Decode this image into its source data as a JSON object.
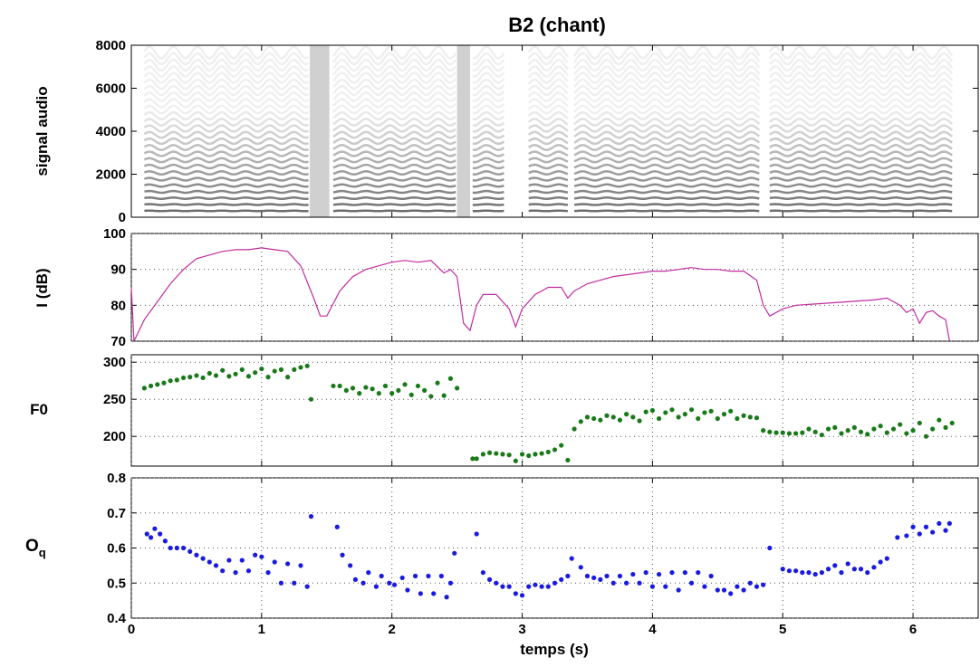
{
  "chart_data": [
    {
      "type": "spectrogram",
      "title": "B2   (chant)",
      "ylabel": "signal audio",
      "xlim": [
        0,
        6.5
      ],
      "xticks": [
        0,
        1,
        2,
        3,
        4,
        5,
        6
      ],
      "ylim": [
        0,
        8000
      ],
      "yticks": [
        0,
        2000,
        4000,
        6000,
        8000
      ],
      "grid": false
    },
    {
      "type": "line",
      "ylabel": "I (dB)",
      "color": "#c02ca0",
      "grid": true,
      "xlim": [
        0,
        6.5
      ],
      "xticks": [
        0,
        1,
        2,
        3,
        4,
        5,
        6
      ],
      "ylim": [
        70,
        100
      ],
      "yticks": [
        70,
        80,
        90,
        100
      ],
      "x": [
        0,
        0.02,
        0.1,
        0.2,
        0.3,
        0.4,
        0.5,
        0.6,
        0.7,
        0.8,
        0.9,
        1.0,
        1.1,
        1.2,
        1.3,
        1.4,
        1.45,
        1.5,
        1.6,
        1.7,
        1.8,
        1.9,
        2.0,
        2.1,
        2.2,
        2.3,
        2.4,
        2.45,
        2.5,
        2.55,
        2.6,
        2.65,
        2.7,
        2.8,
        2.9,
        2.95,
        3.0,
        3.1,
        3.2,
        3.3,
        3.35,
        3.4,
        3.5,
        3.6,
        3.7,
        3.8,
        3.9,
        4.0,
        4.1,
        4.2,
        4.3,
        4.4,
        4.5,
        4.6,
        4.7,
        4.8,
        4.85,
        4.9,
        5.0,
        5.1,
        5.3,
        5.5,
        5.7,
        5.8,
        5.9,
        5.95,
        6.0,
        6.05,
        6.1,
        6.15,
        6.2,
        6.25,
        6.28
      ],
      "values": [
        85,
        70,
        76,
        81,
        86,
        90,
        93,
        94,
        95,
        95.5,
        95.5,
        96,
        95.5,
        95,
        91,
        82,
        77,
        77,
        84,
        88,
        90,
        91,
        92,
        92.5,
        92,
        92.5,
        89,
        90,
        88,
        75,
        73,
        80,
        83,
        83,
        79,
        74,
        79,
        83,
        85,
        85,
        82,
        84,
        86,
        87,
        88,
        88.5,
        89,
        89.5,
        89.5,
        90,
        90.5,
        90,
        90,
        89.5,
        89.5,
        87,
        80,
        77,
        79,
        80,
        80.5,
        81,
        81.5,
        82,
        80,
        78,
        79,
        75,
        78,
        78.5,
        77,
        76,
        70
      ]
    },
    {
      "type": "scatter",
      "ylabel": "F0",
      "color": "#1a7a1a",
      "grid": true,
      "xlim": [
        0,
        6.5
      ],
      "xticks": [
        0,
        1,
        2,
        3,
        4,
        5,
        6
      ],
      "ylim": [
        160,
        310
      ],
      "yticks": [
        200,
        250,
        300
      ],
      "x": [
        0.1,
        0.15,
        0.2,
        0.25,
        0.3,
        0.35,
        0.4,
        0.45,
        0.5,
        0.55,
        0.6,
        0.65,
        0.7,
        0.75,
        0.8,
        0.85,
        0.9,
        0.95,
        1.0,
        1.05,
        1.1,
        1.15,
        1.2,
        1.25,
        1.3,
        1.35,
        1.38,
        1.55,
        1.6,
        1.65,
        1.7,
        1.75,
        1.8,
        1.85,
        1.9,
        1.95,
        2.0,
        2.05,
        2.1,
        2.15,
        2.2,
        2.25,
        2.3,
        2.35,
        2.4,
        2.45,
        2.5,
        2.62,
        2.65,
        2.7,
        2.75,
        2.8,
        2.85,
        2.9,
        2.95,
        3.0,
        3.05,
        3.1,
        3.15,
        3.2,
        3.25,
        3.3,
        3.35,
        3.4,
        3.45,
        3.5,
        3.55,
        3.6,
        3.65,
        3.7,
        3.75,
        3.8,
        3.85,
        3.9,
        3.95,
        4.0,
        4.05,
        4.1,
        4.15,
        4.2,
        4.25,
        4.3,
        4.35,
        4.4,
        4.45,
        4.5,
        4.55,
        4.6,
        4.65,
        4.7,
        4.75,
        4.8,
        4.85,
        4.9,
        4.95,
        5.0,
        5.05,
        5.1,
        5.15,
        5.2,
        5.25,
        5.3,
        5.35,
        5.4,
        5.45,
        5.5,
        5.55,
        5.6,
        5.65,
        5.7,
        5.75,
        5.8,
        5.85,
        5.9,
        5.95,
        6.0,
        6.05,
        6.1,
        6.15,
        6.2,
        6.25,
        6.3
      ],
      "values": [
        265,
        268,
        270,
        272,
        275,
        276,
        279,
        280,
        282,
        279,
        285,
        282,
        289,
        281,
        284,
        290,
        281,
        286,
        291,
        280,
        288,
        290,
        280,
        290,
        293,
        295,
        250,
        268,
        268,
        262,
        265,
        258,
        266,
        264,
        258,
        268,
        258,
        262,
        270,
        256,
        268,
        262,
        254,
        272,
        255,
        278,
        265,
        170,
        170,
        176,
        178,
        177,
        176,
        175,
        167,
        176,
        174,
        176,
        177,
        179,
        182,
        188,
        168,
        210,
        220,
        226,
        224,
        222,
        228,
        226,
        222,
        230,
        226,
        221,
        233,
        235,
        224,
        232,
        236,
        226,
        230,
        236,
        224,
        232,
        234,
        224,
        230,
        234,
        224,
        228,
        226,
        225,
        208,
        206,
        205,
        205,
        204,
        204,
        205,
        210,
        206,
        202,
        210,
        212,
        204,
        208,
        212,
        206,
        203,
        210,
        214,
        205,
        210,
        216,
        204,
        208,
        218,
        200,
        210,
        222,
        212,
        218
      ]
    },
    {
      "type": "scatter",
      "ylabel": {
        "base": "O",
        "sub": "q"
      },
      "xlabel": "temps (s)",
      "color": "#1a1ae0",
      "grid": true,
      "xlim": [
        0,
        6.5
      ],
      "xticks": [
        0,
        1,
        2,
        3,
        4,
        5,
        6
      ],
      "ylim": [
        0.4,
        0.8
      ],
      "yticks": [
        0.4,
        0.5,
        0.6,
        0.7,
        0.8
      ],
      "xticklabels": true,
      "x": [
        0.12,
        0.15,
        0.18,
        0.22,
        0.26,
        0.3,
        0.35,
        0.4,
        0.45,
        0.5,
        0.55,
        0.6,
        0.65,
        0.7,
        0.75,
        0.8,
        0.85,
        0.9,
        0.95,
        1.0,
        1.05,
        1.1,
        1.15,
        1.2,
        1.25,
        1.3,
        1.35,
        1.38,
        1.58,
        1.62,
        1.68,
        1.72,
        1.78,
        1.82,
        1.88,
        1.92,
        1.98,
        2.02,
        2.08,
        2.12,
        2.18,
        2.22,
        2.28,
        2.32,
        2.38,
        2.42,
        2.45,
        2.48,
        2.65,
        2.7,
        2.75,
        2.8,
        2.85,
        2.9,
        2.95,
        3.0,
        3.05,
        3.1,
        3.15,
        3.2,
        3.25,
        3.3,
        3.35,
        3.38,
        3.45,
        3.5,
        3.55,
        3.6,
        3.65,
        3.7,
        3.75,
        3.8,
        3.85,
        3.9,
        3.95,
        4.0,
        4.05,
        4.1,
        4.15,
        4.2,
        4.25,
        4.3,
        4.35,
        4.4,
        4.45,
        4.5,
        4.55,
        4.6,
        4.65,
        4.7,
        4.75,
        4.8,
        4.85,
        4.9,
        5.0,
        5.05,
        5.1,
        5.15,
        5.2,
        5.25,
        5.3,
        5.35,
        5.4,
        5.45,
        5.5,
        5.55,
        5.6,
        5.65,
        5.7,
        5.75,
        5.8,
        5.88,
        5.95,
        6.0,
        6.05,
        6.1,
        6.15,
        6.2,
        6.25,
        6.28
      ],
      "values": [
        0.64,
        0.63,
        0.655,
        0.64,
        0.62,
        0.6,
        0.6,
        0.6,
        0.59,
        0.58,
        0.57,
        0.56,
        0.55,
        0.535,
        0.565,
        0.53,
        0.565,
        0.535,
        0.58,
        0.575,
        0.53,
        0.56,
        0.5,
        0.555,
        0.5,
        0.55,
        0.49,
        0.69,
        0.66,
        0.58,
        0.55,
        0.51,
        0.5,
        0.53,
        0.49,
        0.52,
        0.5,
        0.495,
        0.515,
        0.48,
        0.52,
        0.47,
        0.52,
        0.47,
        0.52,
        0.46,
        0.5,
        0.585,
        0.64,
        0.53,
        0.51,
        0.5,
        0.49,
        0.49,
        0.47,
        0.465,
        0.49,
        0.495,
        0.49,
        0.49,
        0.5,
        0.51,
        0.52,
        0.57,
        0.545,
        0.52,
        0.515,
        0.51,
        0.52,
        0.5,
        0.52,
        0.5,
        0.525,
        0.5,
        0.53,
        0.49,
        0.525,
        0.49,
        0.53,
        0.48,
        0.53,
        0.5,
        0.53,
        0.49,
        0.52,
        0.48,
        0.48,
        0.47,
        0.49,
        0.48,
        0.5,
        0.49,
        0.495,
        0.6,
        0.54,
        0.535,
        0.535,
        0.53,
        0.53,
        0.525,
        0.53,
        0.54,
        0.55,
        0.53,
        0.555,
        0.54,
        0.54,
        0.53,
        0.545,
        0.56,
        0.57,
        0.63,
        0.635,
        0.66,
        0.64,
        0.66,
        0.645,
        0.67,
        0.65,
        0.67
      ]
    }
  ]
}
